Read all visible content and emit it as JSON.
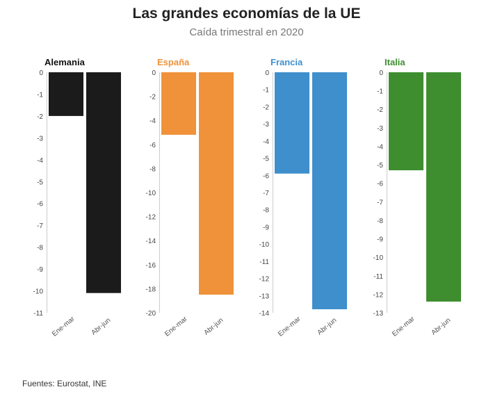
{
  "header": {
    "title": "Las grandes economías de la UE",
    "subtitle": "Caída trimestral en 2020"
  },
  "footer": {
    "source": "Fuentes: Eurostat, INE"
  },
  "chart_data": [
    {
      "type": "bar",
      "title": "Alemania",
      "color": "#1b1b1b",
      "categories": [
        "Ene-mar",
        "Abr-jun"
      ],
      "values": [
        -2.0,
        -10.1
      ],
      "ylim": [
        -11,
        0
      ],
      "ticks": [
        0,
        -1,
        -2,
        -3,
        -4,
        -5,
        -6,
        -7,
        -8,
        -9,
        -10,
        -11
      ]
    },
    {
      "type": "bar",
      "title": "España",
      "color": "#f0923a",
      "categories": [
        "Ene-mar",
        "Abr-jun"
      ],
      "values": [
        -5.2,
        -18.5
      ],
      "ylim": [
        -20,
        0
      ],
      "ticks": [
        0,
        -2,
        -4,
        -6,
        -8,
        -10,
        -12,
        -14,
        -16,
        -18,
        -20
      ]
    },
    {
      "type": "bar",
      "title": "Francia",
      "color": "#3f8fcc",
      "categories": [
        "Ene-mar",
        "Abr-jun"
      ],
      "values": [
        -5.9,
        -13.8
      ],
      "ylim": [
        -14,
        0
      ],
      "ticks": [
        0,
        -1,
        -2,
        -3,
        -4,
        -5,
        -6,
        -7,
        -8,
        -9,
        -10,
        -11,
        -12,
        -13,
        -14
      ]
    },
    {
      "type": "bar",
      "title": "Italia",
      "color": "#3e8e2f",
      "categories": [
        "Ene-mar",
        "Abr-jun"
      ],
      "values": [
        -5.3,
        -12.4
      ],
      "ylim": [
        -13,
        0
      ],
      "ticks": [
        0,
        -1,
        -2,
        -3,
        -4,
        -5,
        -6,
        -7,
        -8,
        -9,
        -10,
        -11,
        -12,
        -13
      ]
    }
  ]
}
